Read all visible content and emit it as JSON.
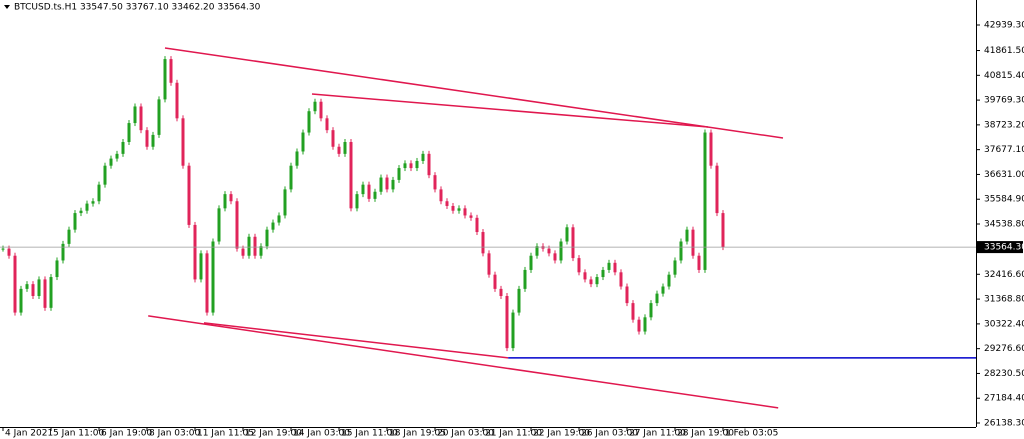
{
  "chart_data": {
    "type": "candlestick",
    "title": "BTCUSD.ts.H1  33547.50 33767.10 33462.20 33564.30",
    "values": [
      33500,
      33200,
      30800,
      31800,
      32000,
      31500,
      32200,
      31000,
      32300,
      33000,
      33700,
      34300,
      35000,
      35100,
      35400,
      35500,
      36200,
      37000,
      37300,
      37500,
      38000,
      38800,
      39500,
      38500,
      37800,
      38300,
      39800,
      41500,
      40500,
      39000,
      37000,
      34500,
      32200,
      33300,
      30800,
      33800,
      35200,
      35800,
      35500,
      33500,
      33200,
      34000,
      33200,
      33600,
      34300,
      34600,
      34900,
      36000,
      37000,
      37600,
      38400,
      39300,
      39700,
      39000,
      38500,
      37800,
      37500,
      38000,
      35200,
      35800,
      36200,
      35600,
      35900,
      36500,
      36000,
      36400,
      36900,
      37100,
      36900,
      37200,
      37500,
      36600,
      36000,
      35500,
      35300,
      35100,
      35200,
      34900,
      34800,
      34200,
      33300,
      32400,
      31800,
      31500,
      29300,
      30800,
      31800,
      32600,
      33200,
      33600,
      33500,
      33300,
      33000,
      33800,
      34400,
      33100,
      32500,
      32200,
      32000,
      32300,
      32600,
      32900,
      32500,
      31900,
      31200,
      30500,
      30000,
      30600,
      31200,
      31600,
      31900,
      32400,
      33000,
      33800,
      34300,
      33200,
      32600,
      38400,
      37000,
      35000,
      33564.3
    ],
    "up_color": "#22a022",
    "down_color": "#e0245a",
    "xlim": [
      -0.5,
      162.17
    ],
    "ylim": [
      25970,
      43910
    ],
    "xticks": [
      {
        "value": 0,
        "label": "4 Jan 2021"
      },
      {
        "value": 8,
        "label": "5 Jan 11:00"
      },
      {
        "value": 16,
        "label": "6 Jan 19:00"
      },
      {
        "value": 24,
        "label": "8 Jan 03:00"
      },
      {
        "value": 32,
        "label": "11 Jan 11:05"
      },
      {
        "value": 40,
        "label": "12 Jan 19:00"
      },
      {
        "value": 48,
        "label": "14 Jan 03:00"
      },
      {
        "value": 56,
        "label": "15 Jan 11:00"
      },
      {
        "value": 64,
        "label": "18 Jan 19:05"
      },
      {
        "value": 72,
        "label": "20 Jan 03:00"
      },
      {
        "value": 80,
        "label": "21 Jan 11:00"
      },
      {
        "value": 88,
        "label": "22 Jan 19:00"
      },
      {
        "value": 96,
        "label": "26 Jan 03:00"
      },
      {
        "value": 104,
        "label": "27 Jan 11:00"
      },
      {
        "value": 112,
        "label": "28 Jan 19:00"
      },
      {
        "value": 120,
        "label": "1 Feb 03:05"
      }
    ],
    "yticks": [
      {
        "value": 42939.3,
        "label": "42939.30"
      },
      {
        "value": 41861.5,
        "label": "41861.50"
      },
      {
        "value": 40815.4,
        "label": "40815.40"
      },
      {
        "value": 39769.3,
        "label": "39769.30"
      },
      {
        "value": 38723.2,
        "label": "38723.20"
      },
      {
        "value": 37677.1,
        "label": "37677.10"
      },
      {
        "value": 36631,
        "label": "36631.00"
      },
      {
        "value": 35584.9,
        "label": "35584.90"
      },
      {
        "value": 34538.8,
        "label": "34538.80"
      },
      {
        "value": 32416.6,
        "label": "32416.60"
      },
      {
        "value": 31368.8,
        "label": "31368.80"
      },
      {
        "value": 30322.4,
        "label": "30322.40"
      },
      {
        "value": 29276.6,
        "label": "29276.60"
      },
      {
        "value": 28230.5,
        "label": "28230.50"
      },
      {
        "value": 27184.4,
        "label": "27184.40"
      },
      {
        "value": 26138.3,
        "label": "26138.30"
      }
    ],
    "current_price": {
      "value": 33564.3,
      "label": "33564.30"
    },
    "trend_lines": [
      {
        "x1": 27,
        "y1": 41969,
        "x2": 130,
        "y2": 38170,
        "color": "#e0174e"
      },
      {
        "x1": 51.5,
        "y1": 40027,
        "x2": 117.5,
        "y2": 38635,
        "color": "#e0174e"
      },
      {
        "x1": 24.2,
        "y1": 30659,
        "x2": 129.2,
        "y2": 26777,
        "color": "#e0174e"
      },
      {
        "x1": 33.5,
        "y1": 30364,
        "x2": 84.2,
        "y2": 28887,
        "color": "#e0174e"
      }
    ],
    "horizontal_line": {
      "value": 28887,
      "x_start": 84.2,
      "color": "#0000cc"
    }
  }
}
